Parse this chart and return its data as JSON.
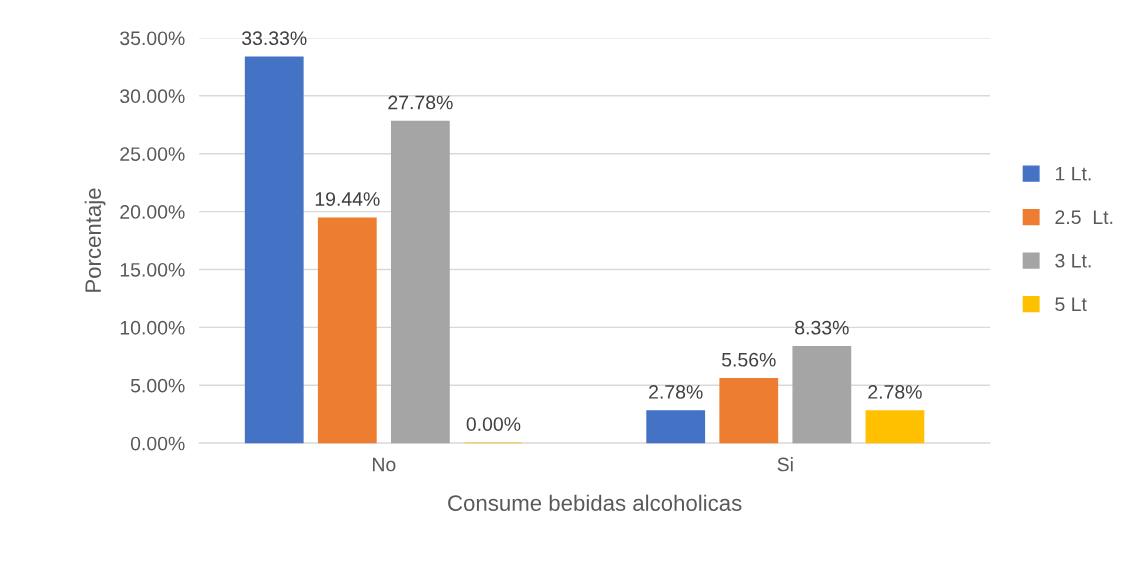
{
  "chart_data": {
    "type": "bar",
    "xlabel": "Consume bebidas alcoholicas",
    "ylabel": "Porcentaje",
    "categories": [
      "No",
      "Si"
    ],
    "series": [
      {
        "name": "1 Lt.",
        "color": "#4472c4",
        "values": [
          33.33,
          2.78
        ],
        "value_labels": [
          "33.33%",
          "2.78%"
        ]
      },
      {
        "name": "2.5  Lt.",
        "color": "#ed7d31",
        "values": [
          19.44,
          5.56
        ],
        "value_labels": [
          "19.44%",
          "5.56%"
        ]
      },
      {
        "name": "3 Lt.",
        "color": "#a5a5a5",
        "values": [
          27.78,
          8.33
        ],
        "value_labels": [
          "27.78%",
          "8.33%"
        ]
      },
      {
        "name": "5 Lt",
        "color": "#ffc000",
        "values": [
          0,
          2.78
        ],
        "value_labels": [
          "0.00%",
          "2.78%"
        ]
      }
    ],
    "ylim": [
      0,
      35
    ],
    "yticks": [
      {
        "value": 0,
        "label": "0.00%"
      },
      {
        "value": 5,
        "label": "5.00%"
      },
      {
        "value": 10,
        "label": "10.00%"
      },
      {
        "value": 15,
        "label": "15.00%"
      },
      {
        "value": 20,
        "label": "20.00%"
      },
      {
        "value": 25,
        "label": "25.00%"
      },
      {
        "value": 30,
        "label": "30.00%"
      },
      {
        "value": 35,
        "label": "35.00%"
      }
    ],
    "grid": "y",
    "legend": "right"
  }
}
